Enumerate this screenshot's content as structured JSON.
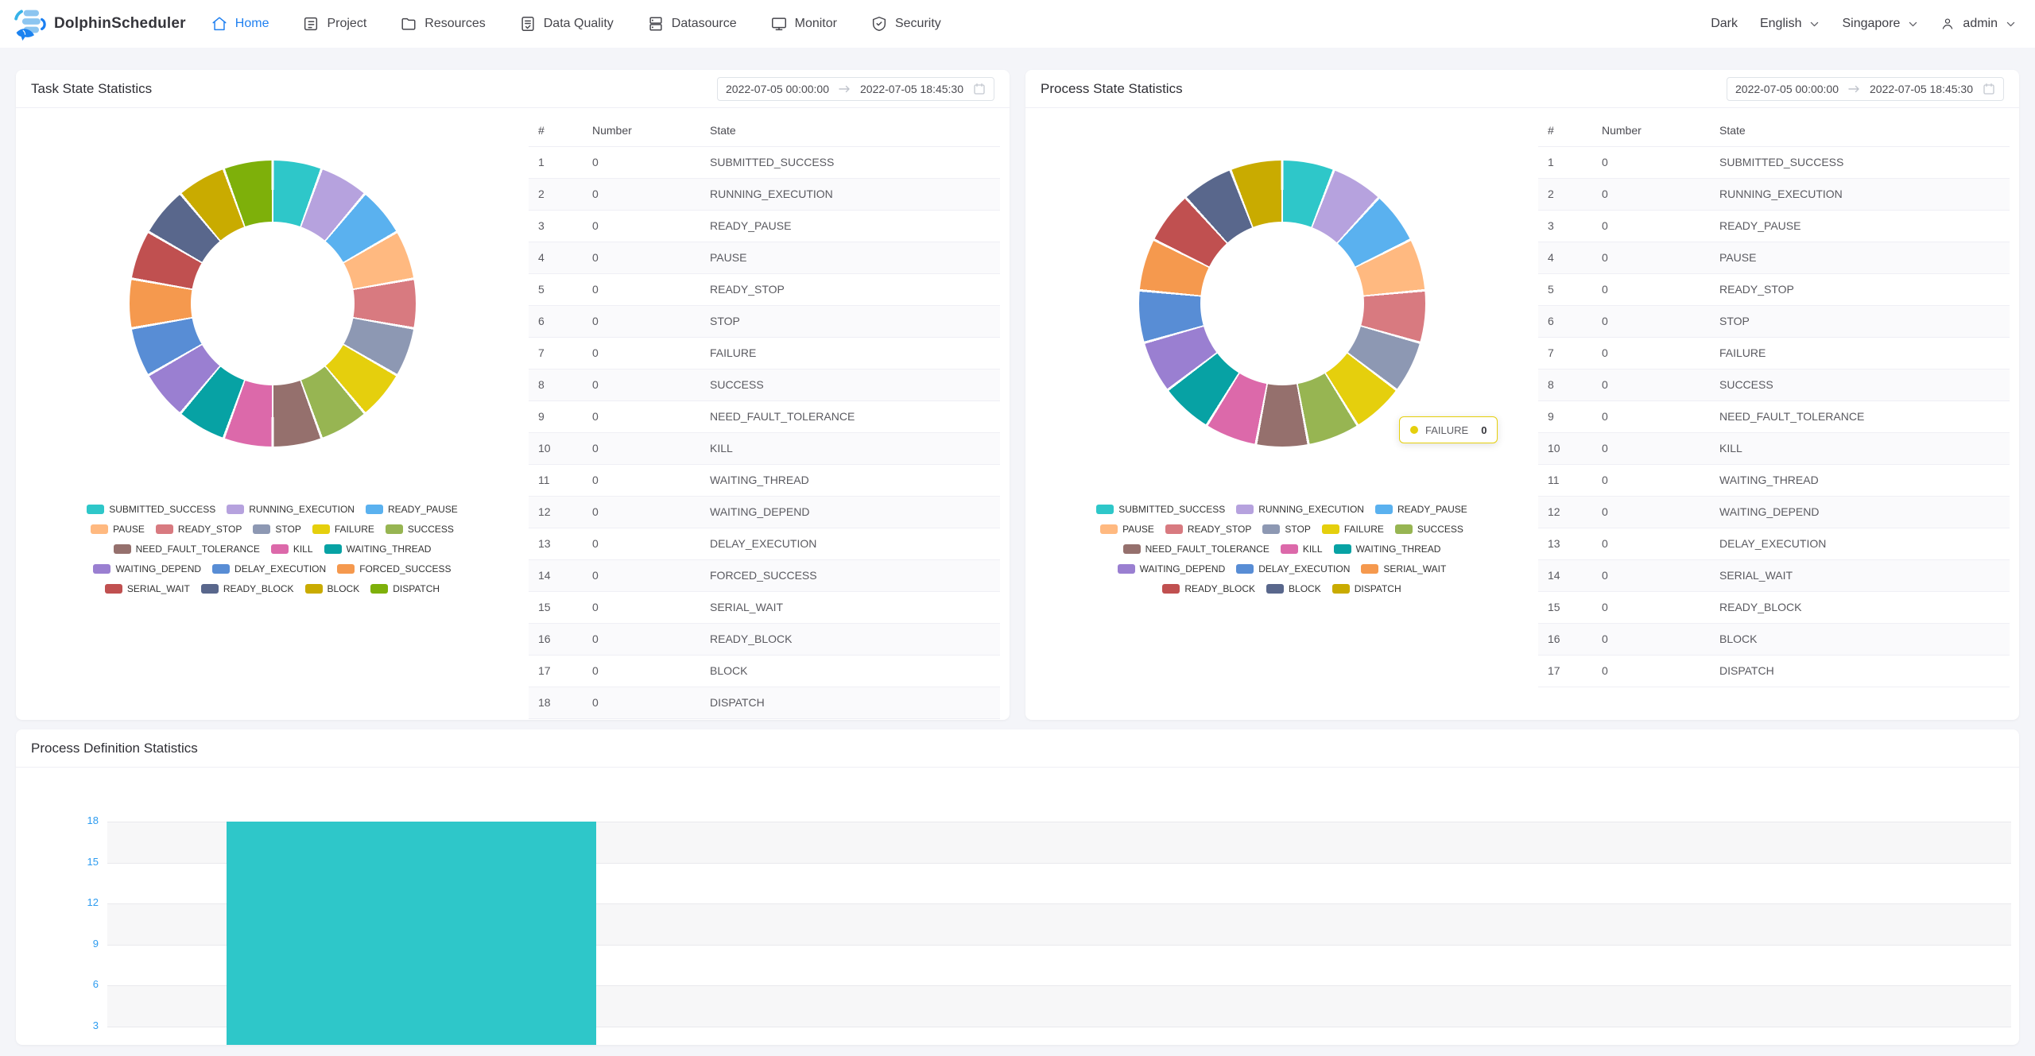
{
  "nav": {
    "brand": "DolphinScheduler",
    "items": [
      {
        "label": "Home",
        "icon": "home-icon",
        "active": true
      },
      {
        "label": "Project",
        "icon": "project-icon",
        "active": false
      },
      {
        "label": "Resources",
        "icon": "folder-icon",
        "active": false
      },
      {
        "label": "Data Quality",
        "icon": "data-quality-icon",
        "active": false
      },
      {
        "label": "Datasource",
        "icon": "database-icon",
        "active": false
      },
      {
        "label": "Monitor",
        "icon": "monitor-icon",
        "active": false
      },
      {
        "label": "Security",
        "icon": "shield-icon",
        "active": false
      }
    ],
    "theme_toggle": "Dark",
    "language": "English",
    "timezone": "Singapore",
    "user": "admin"
  },
  "date_range": {
    "start": "2022-07-05 00:00:00",
    "end": "2022-07-05 18:45:30"
  },
  "task_card": {
    "title": "Task State Statistics",
    "table_headers": [
      "#",
      "Number",
      "State"
    ],
    "states": [
      {
        "name": "SUBMITTED_SUCCESS",
        "number": "0",
        "color": "#2ec7c9"
      },
      {
        "name": "RUNNING_EXECUTION",
        "number": "0",
        "color": "#b6a2de"
      },
      {
        "name": "READY_PAUSE",
        "number": "0",
        "color": "#5ab1ef"
      },
      {
        "name": "PAUSE",
        "number": "0",
        "color": "#ffb980"
      },
      {
        "name": "READY_STOP",
        "number": "0",
        "color": "#d87a80"
      },
      {
        "name": "STOP",
        "number": "0",
        "color": "#8d98b3"
      },
      {
        "name": "FAILURE",
        "number": "0",
        "color": "#e5cf0d"
      },
      {
        "name": "SUCCESS",
        "number": "0",
        "color": "#97b552"
      },
      {
        "name": "NEED_FAULT_TOLERANCE",
        "number": "0",
        "color": "#95706d"
      },
      {
        "name": "KILL",
        "number": "0",
        "color": "#dc69aa"
      },
      {
        "name": "WAITING_THREAD",
        "number": "0",
        "color": "#07a2a4"
      },
      {
        "name": "WAITING_DEPEND",
        "number": "0",
        "color": "#9a7fd1"
      },
      {
        "name": "DELAY_EXECUTION",
        "number": "0",
        "color": "#588dd5"
      },
      {
        "name": "FORCED_SUCCESS",
        "number": "0",
        "color": "#f5994e"
      },
      {
        "name": "SERIAL_WAIT",
        "number": "0",
        "color": "#c05050"
      },
      {
        "name": "READY_BLOCK",
        "number": "0",
        "color": "#59678c"
      },
      {
        "name": "BLOCK",
        "number": "0",
        "color": "#c9ab00"
      },
      {
        "name": "DISPATCH",
        "number": "0",
        "color": "#7eb00a"
      }
    ],
    "chart_data": {
      "type": "pie",
      "labels": [
        "SUBMITTED_SUCCESS",
        "RUNNING_EXECUTION",
        "READY_PAUSE",
        "PAUSE",
        "READY_STOP",
        "STOP",
        "FAILURE",
        "SUCCESS",
        "NEED_FAULT_TOLERANCE",
        "KILL",
        "WAITING_THREAD",
        "WAITING_DEPEND",
        "DELAY_EXECUTION",
        "FORCED_SUCCESS",
        "SERIAL_WAIT",
        "READY_BLOCK",
        "BLOCK",
        "DISPATCH"
      ],
      "values": [
        0,
        0,
        0,
        0,
        0,
        0,
        0,
        0,
        0,
        0,
        0,
        0,
        0,
        0,
        0,
        0,
        0,
        0
      ],
      "title": "Task State Statistics",
      "note": "all values 0 - donut rendered as 18 equal segments",
      "legend_position": "bottom"
    }
  },
  "process_card": {
    "title": "Process State Statistics",
    "table_headers": [
      "#",
      "Number",
      "State"
    ],
    "states": [
      {
        "name": "SUBMITTED_SUCCESS",
        "number": "0",
        "color": "#2ec7c9"
      },
      {
        "name": "RUNNING_EXECUTION",
        "number": "0",
        "color": "#b6a2de"
      },
      {
        "name": "READY_PAUSE",
        "number": "0",
        "color": "#5ab1ef"
      },
      {
        "name": "PAUSE",
        "number": "0",
        "color": "#ffb980"
      },
      {
        "name": "READY_STOP",
        "number": "0",
        "color": "#d87a80"
      },
      {
        "name": "STOP",
        "number": "0",
        "color": "#8d98b3"
      },
      {
        "name": "FAILURE",
        "number": "0",
        "color": "#e5cf0d"
      },
      {
        "name": "SUCCESS",
        "number": "0",
        "color": "#97b552"
      },
      {
        "name": "NEED_FAULT_TOLERANCE",
        "number": "0",
        "color": "#95706d"
      },
      {
        "name": "KILL",
        "number": "0",
        "color": "#dc69aa"
      },
      {
        "name": "WAITING_THREAD",
        "number": "0",
        "color": "#07a2a4"
      },
      {
        "name": "WAITING_DEPEND",
        "number": "0",
        "color": "#9a7fd1"
      },
      {
        "name": "DELAY_EXECUTION",
        "number": "0",
        "color": "#588dd5"
      },
      {
        "name": "SERIAL_WAIT",
        "number": "0",
        "color": "#f5994e"
      },
      {
        "name": "READY_BLOCK",
        "number": "0",
        "color": "#c05050"
      },
      {
        "name": "BLOCK",
        "number": "0",
        "color": "#59678c"
      },
      {
        "name": "DISPATCH",
        "number": "0",
        "color": "#c9ab00"
      }
    ],
    "tooltip": {
      "label": "FAILURE",
      "value": "0",
      "color": "#e5cf0d"
    },
    "chart_data": {
      "type": "pie",
      "labels": [
        "SUBMITTED_SUCCESS",
        "RUNNING_EXECUTION",
        "READY_PAUSE",
        "PAUSE",
        "READY_STOP",
        "STOP",
        "FAILURE",
        "SUCCESS",
        "NEED_FAULT_TOLERANCE",
        "KILL",
        "WAITING_THREAD",
        "WAITING_DEPEND",
        "DELAY_EXECUTION",
        "SERIAL_WAIT",
        "READY_BLOCK",
        "BLOCK",
        "DISPATCH"
      ],
      "values": [
        0,
        0,
        0,
        0,
        0,
        0,
        0,
        0,
        0,
        0,
        0,
        0,
        0,
        0,
        0,
        0,
        0
      ],
      "title": "Process State Statistics",
      "note": "all values 0 - donut rendered as 17 equal segments",
      "legend_position": "bottom"
    }
  },
  "definition_card": {
    "title": "Process Definition Statistics",
    "chart_data": {
      "type": "bar",
      "categories": [
        ""
      ],
      "values": [
        18
      ],
      "yticks": [
        18,
        15,
        12,
        9,
        6,
        3
      ],
      "ylim": [
        0,
        18
      ],
      "bar_color": "#2ec7c9",
      "grid": true,
      "note": "single bar reaching 18, chart clipped at bottom of viewport"
    }
  },
  "colors": {
    "accent": "#2080f0",
    "axis_label": "#2d9cf0",
    "page_bg": "#f4f5f9",
    "stripe": "#fafafc"
  }
}
